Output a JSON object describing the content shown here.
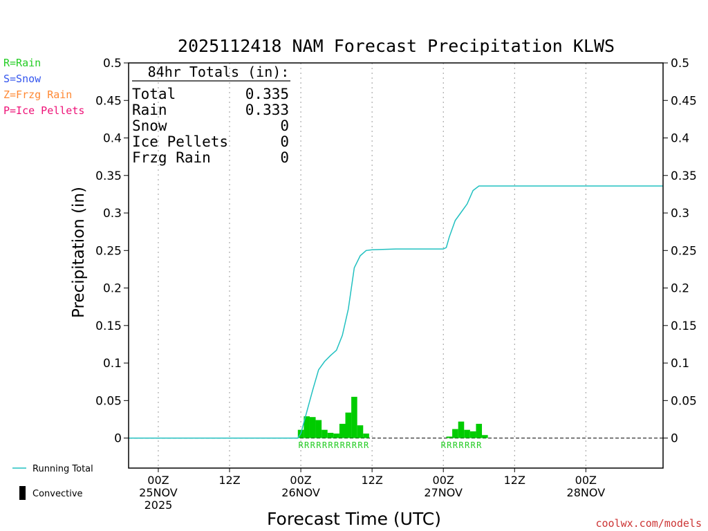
{
  "chart_data": {
    "type": "bar+line",
    "title": "2025112418 NAM Forecast Precipitation KLWS",
    "xlabel": "Forecast Time (UTC)",
    "ylabel": "Precipitation (in)",
    "ylim": [
      -0.04,
      0.5
    ],
    "y_ticks": [
      0,
      0.05,
      0.1,
      0.15,
      0.2,
      0.25,
      0.3,
      0.35,
      0.4,
      0.45,
      0.5
    ],
    "y_tick_labels": [
      "0",
      "0.05",
      "0.1",
      "0.15",
      "0.2",
      "0.25",
      "0.3",
      "0.35",
      "0.4",
      "0.45",
      "0.5"
    ],
    "xlim_hours": [
      -5,
      85
    ],
    "x_grid_hours": [
      0,
      12,
      24,
      36,
      48,
      60,
      72
    ],
    "x_tick_labels": [
      {
        "hour": 0,
        "lines": [
          "00Z",
          "25NOV",
          "2025"
        ]
      },
      {
        "hour": 12,
        "lines": [
          "12Z"
        ]
      },
      {
        "hour": 24,
        "lines": [
          "00Z",
          "26NOV"
        ]
      },
      {
        "hour": 36,
        "lines": [
          "12Z"
        ]
      },
      {
        "hour": 48,
        "lines": [
          "00Z",
          "27NOV"
        ]
      },
      {
        "hour": 60,
        "lines": [
          "12Z"
        ]
      },
      {
        "hour": 72,
        "lines": [
          "00Z",
          "28NOV"
        ]
      }
    ],
    "hourly_precip": {
      "hours": [
        24,
        25,
        26,
        27,
        28,
        29,
        30,
        31,
        32,
        33,
        34,
        35,
        49,
        50,
        51,
        52,
        53,
        54,
        55
      ],
      "values": [
        0.011,
        0.029,
        0.028,
        0.024,
        0.011,
        0.007,
        0.006,
        0.019,
        0.034,
        0.055,
        0.017,
        0.006,
        0.002,
        0.012,
        0.022,
        0.011,
        0.009,
        0.019,
        0.004
      ],
      "color": "#00cc00"
    },
    "running_total": {
      "name": "Running Total",
      "color": "#20c0c0",
      "x": [
        -5,
        23.5,
        24,
        25,
        26,
        27,
        28,
        29,
        30,
        31,
        32,
        33,
        34,
        35,
        36,
        40,
        48,
        48.5,
        49,
        50,
        51,
        52,
        53,
        54,
        55,
        85
      ],
      "y": [
        0,
        0,
        0.006,
        0.035,
        0.064,
        0.091,
        0.102,
        0.11,
        0.117,
        0.137,
        0.172,
        0.227,
        0.243,
        0.25,
        0.251,
        0.252,
        0.252,
        0.254,
        0.268,
        0.29,
        0.301,
        0.312,
        0.33,
        0.336,
        0.336,
        0.336
      ]
    },
    "precip_type_marks": [
      {
        "hour": 24,
        "label": "R"
      },
      {
        "hour": 25,
        "label": "R"
      },
      {
        "hour": 26,
        "label": "R"
      },
      {
        "hour": 27,
        "label": "R"
      },
      {
        "hour": 28,
        "label": "R"
      },
      {
        "hour": 29,
        "label": "R"
      },
      {
        "hour": 30,
        "label": "R"
      },
      {
        "hour": 31,
        "label": "R"
      },
      {
        "hour": 32,
        "label": "R"
      },
      {
        "hour": 33,
        "label": "R"
      },
      {
        "hour": 34,
        "label": "R"
      },
      {
        "hour": 35,
        "label": "R"
      },
      {
        "hour": 48,
        "label": "R"
      },
      {
        "hour": 49,
        "label": "R"
      },
      {
        "hour": 50,
        "label": "R"
      },
      {
        "hour": 51,
        "label": "R"
      },
      {
        "hour": 52,
        "label": "R"
      },
      {
        "hour": 53,
        "label": "R"
      },
      {
        "hour": 54,
        "label": "R"
      }
    ],
    "totals_box": {
      "heading": "84hr Totals (in):",
      "rows": [
        {
          "label": "Total",
          "value": "0.335"
        },
        {
          "label": "Rain",
          "value": "0.333"
        },
        {
          "label": "Snow",
          "value": "0"
        },
        {
          "label": "Ice Pellets",
          "value": "0"
        },
        {
          "label": "Frzg Rain",
          "value": "0"
        }
      ]
    },
    "type_legend": [
      {
        "label": "R=Rain",
        "color": "#22cc22"
      },
      {
        "label": "S=Snow",
        "color": "#3355ee"
      },
      {
        "label": "Z=Frzg Rain",
        "color": "#ff8833"
      },
      {
        "label": "P=Ice Pellets",
        "color": "#ee1177"
      }
    ],
    "series_legend": [
      {
        "label": "Running Total",
        "color": "#20c0c0",
        "kind": "line"
      },
      {
        "label": "Convective",
        "color": "#000000",
        "kind": "bar"
      }
    ],
    "credit": "coolwx.com/models"
  }
}
